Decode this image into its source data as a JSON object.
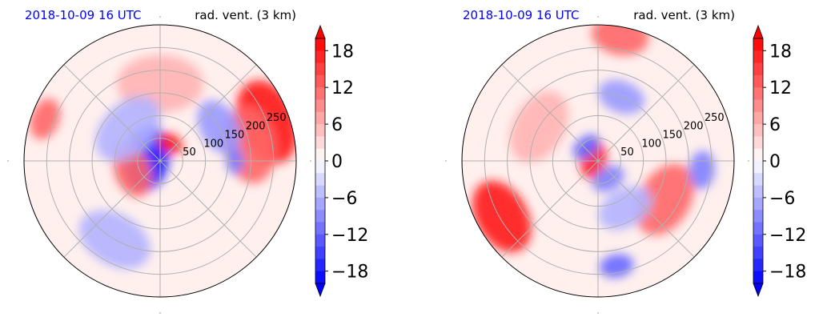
{
  "chart_data": [
    {
      "type": "polar-contourf",
      "title_left": "2018-10-09 16 UTC",
      "title_right": "rad. vent. (3 km)",
      "title_left_color": "#0000ff",
      "radial_ticks": [
        "50",
        "100",
        "150",
        "200",
        "250"
      ],
      "radial_values": [
        50,
        100,
        150,
        200,
        250
      ],
      "r_max": 300,
      "angular_gridlines_deg": [
        0,
        45,
        90,
        135,
        180,
        225,
        270,
        315
      ],
      "colorbar": {
        "ticks": [
          18,
          12,
          6,
          0,
          -6,
          -12,
          -18
        ],
        "tick_labels": [
          "18",
          "12",
          "6",
          "0",
          "−6",
          "−12",
          "−18"
        ],
        "vmin": -20,
        "vmax": 20,
        "levels": 20,
        "cmap": "bwr",
        "extend": "both"
      },
      "features": [
        {
          "kind": "blob",
          "value": -18,
          "r": 30,
          "theta": 170,
          "size": 35
        },
        {
          "kind": "blob",
          "value": 18,
          "r": 45,
          "theta": 60,
          "size": 14
        },
        {
          "kind": "blob",
          "value": 12,
          "r": 65,
          "theta": 200,
          "size": 28
        },
        {
          "kind": "blob",
          "value": 18,
          "r": 250,
          "theta": 20,
          "size": 45
        },
        {
          "kind": "blob",
          "value": 12,
          "r": 200,
          "theta": 10,
          "size": 40
        },
        {
          "kind": "blob",
          "value": 12,
          "r": 270,
          "theta": 160,
          "size": 22
        },
        {
          "kind": "blob",
          "value": -8,
          "r": 150,
          "theta": 30,
          "size": 30
        },
        {
          "kind": "blob",
          "value": -6,
          "r": 200,
          "theta": 240,
          "size": 40
        },
        {
          "kind": "blob",
          "value": 6,
          "r": 170,
          "theta": 90,
          "size": 45
        },
        {
          "kind": "blob",
          "value": -10,
          "r": 165,
          "theta": 0,
          "size": 14
        },
        {
          "kind": "blob",
          "value": -6,
          "r": 100,
          "theta": 135,
          "size": 40
        }
      ]
    },
    {
      "type": "polar-contourf",
      "title_left": "2018-10-09 16 UTC",
      "title_right": "rad. vent. (3 km)",
      "title_left_color": "#0000ff",
      "radial_ticks": [
        "50",
        "100",
        "150",
        "200",
        "250"
      ],
      "radial_values": [
        50,
        100,
        150,
        200,
        250
      ],
      "r_max": 300,
      "angular_gridlines_deg": [
        0,
        45,
        90,
        135,
        180,
        225,
        270,
        315
      ],
      "colorbar": {
        "ticks": [
          18,
          12,
          6,
          0,
          -6,
          -12,
          -18
        ],
        "tick_labels": [
          "18",
          "12",
          "6",
          "0",
          "−6",
          "−12",
          "−18"
        ],
        "vmin": -20,
        "vmax": 20,
        "levels": 20,
        "cmap": "bwr",
        "extend": "both"
      },
      "features": [
        {
          "kind": "blob",
          "value": 18,
          "r": 10,
          "theta": 170,
          "size": 20
        },
        {
          "kind": "blob",
          "value": -12,
          "r": 40,
          "theta": 130,
          "size": 16
        },
        {
          "kind": "blob",
          "value": -10,
          "r": 45,
          "theta": 300,
          "size": 18
        },
        {
          "kind": "blob",
          "value": 18,
          "r": 245,
          "theta": 210,
          "size": 40
        },
        {
          "kind": "blob",
          "value": 12,
          "r": 170,
          "theta": 330,
          "size": 40
        },
        {
          "kind": "blob",
          "value": -12,
          "r": 235,
          "theta": 280,
          "size": 18
        },
        {
          "kind": "blob",
          "value": -10,
          "r": 230,
          "theta": 355,
          "size": 20
        },
        {
          "kind": "blob",
          "value": 12,
          "r": 280,
          "theta": 80,
          "size": 30
        },
        {
          "kind": "blob",
          "value": -8,
          "r": 150,
          "theta": 70,
          "size": 25
        },
        {
          "kind": "blob",
          "value": 6,
          "r": 150,
          "theta": 150,
          "size": 40
        },
        {
          "kind": "blob",
          "value": -6,
          "r": 120,
          "theta": 300,
          "size": 30
        }
      ]
    }
  ]
}
